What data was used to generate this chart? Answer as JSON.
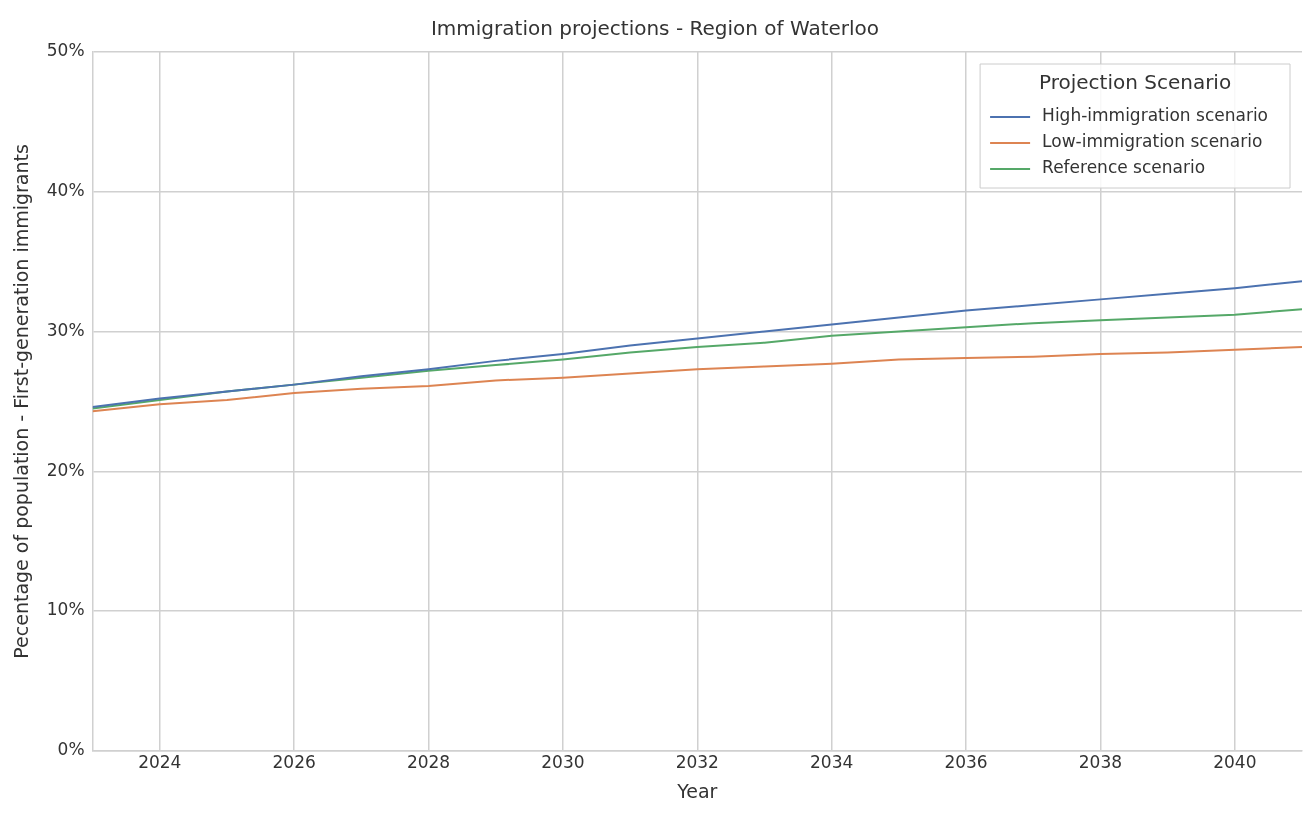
{
  "chart_data": {
    "type": "line",
    "title": "Immigration projections - Region of Waterloo",
    "xlabel": "Year",
    "ylabel": "Pecentage of population - First-generation immigrants",
    "legend_title": "Projection Scenario",
    "x": [
      2023,
      2024,
      2025,
      2026,
      2027,
      2028,
      2029,
      2030,
      2031,
      2032,
      2033,
      2034,
      2035,
      2036,
      2037,
      2038,
      2039,
      2040,
      2041
    ],
    "series": [
      {
        "name": "High-immigration scenario",
        "color": "#4c72b0",
        "values": [
          24.6,
          25.2,
          25.7,
          26.2,
          26.8,
          27.3,
          27.9,
          28.4,
          29.0,
          29.5,
          30.0,
          30.5,
          31.0,
          31.5,
          31.9,
          32.3,
          32.7,
          33.1,
          33.6
        ]
      },
      {
        "name": "Low-immigration scenario",
        "color": "#dd8452",
        "values": [
          24.3,
          24.8,
          25.1,
          25.6,
          25.9,
          26.1,
          26.5,
          26.7,
          27.0,
          27.3,
          27.5,
          27.7,
          28.0,
          28.1,
          28.2,
          28.4,
          28.5,
          28.7,
          28.9
        ]
      },
      {
        "name": "Reference scenario",
        "color": "#55a868",
        "values": [
          24.5,
          25.1,
          25.7,
          26.2,
          26.7,
          27.2,
          27.6,
          28.0,
          28.5,
          28.9,
          29.2,
          29.7,
          30.0,
          30.3,
          30.6,
          30.8,
          31.0,
          31.2,
          31.6
        ]
      }
    ],
    "xlim": [
      2023,
      2041
    ],
    "xticks": [
      2024,
      2026,
      2028,
      2030,
      2032,
      2034,
      2036,
      2038,
      2040
    ],
    "ylim": [
      0,
      50
    ],
    "yticks": [
      {
        "value": 0,
        "label": "0%"
      },
      {
        "value": 10,
        "label": "10%"
      },
      {
        "value": 20,
        "label": "20%"
      },
      {
        "value": 30,
        "label": "30%"
      },
      {
        "value": 40,
        "label": "40%"
      },
      {
        "value": 50,
        "label": "50%"
      }
    ],
    "grid": true,
    "legend": "top right",
    "marker": "none",
    "line_style": "solid"
  }
}
